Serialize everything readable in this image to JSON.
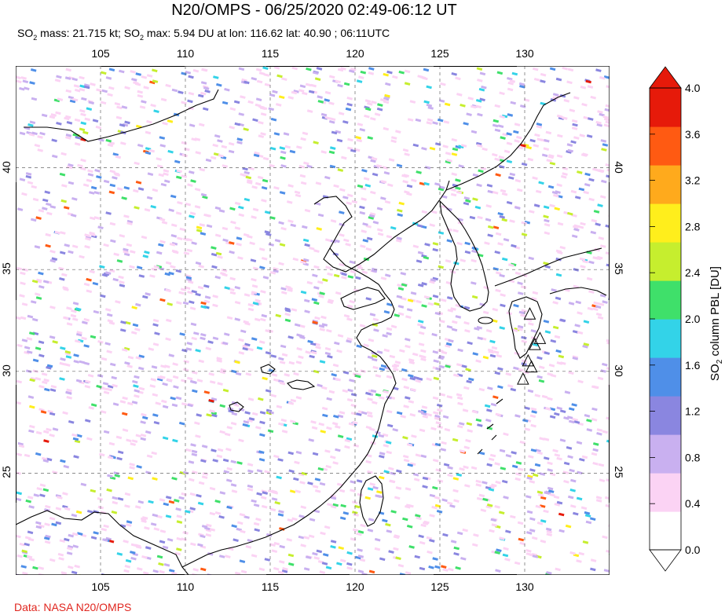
{
  "title": "N20/OMPS - 06/25/2020 02:49-06:12 UT",
  "subtitle": {
    "so2_a": "SO",
    "sub_a": "2",
    "mass_text": " mass: 21.715 kt; SO",
    "sub_b": "2",
    "max_text": " max: 5.94 DU at lon: 116.62 lat: 40.90 ; 06:11UTC"
  },
  "credit": "Data: NASA N20/OMPS",
  "map": {
    "lon_labels": [
      "105",
      "110",
      "115",
      "120",
      "125",
      "130"
    ],
    "lat_labels": [
      "40",
      "35",
      "30",
      "25"
    ],
    "lon_range": [
      100,
      135
    ],
    "lat_range": [
      20,
      45
    ],
    "grid": "dashed",
    "volcano_icon": "triangle-outline-icon",
    "volcanoes": [
      [
        130.3,
        32.8
      ],
      [
        130.9,
        31.6
      ],
      [
        130.6,
        31.3
      ],
      [
        130.2,
        30.5
      ],
      [
        130.4,
        30.2
      ],
      [
        129.9,
        29.6
      ]
    ]
  },
  "colorbar": {
    "label_main": "SO",
    "label_sub": "2",
    "label_rest": " column PBL [DU]",
    "ticks": [
      "4.0",
      "3.6",
      "3.2",
      "2.8",
      "2.4",
      "2.0",
      "1.6",
      "1.2",
      "0.8",
      "0.4",
      "0.0"
    ],
    "colors": [
      "#ffffff",
      "#fbd3f4",
      "#c9b0f0",
      "#8a86e0",
      "#4f8fe8",
      "#33d3e8",
      "#3fe06a",
      "#c6ee2e",
      "#ffee1c",
      "#ffaa1c",
      "#ff5a12",
      "#e61a0a"
    ]
  }
}
